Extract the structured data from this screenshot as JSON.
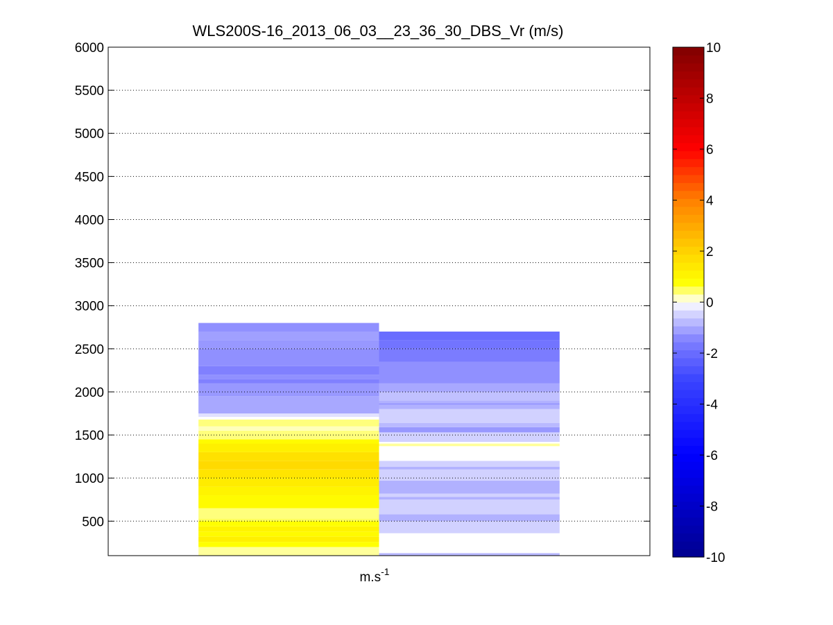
{
  "chart_data": {
    "type": "heatmap",
    "title": "WLS200S-16_2013_06_03__23_36_30_DBS_Vr (m/s)",
    "xlabel_base": "m.s",
    "xlabel_sup": "-1",
    "ylabel": "",
    "ylim": [
      100,
      6000
    ],
    "yticks": [
      500,
      1000,
      1500,
      2000,
      2500,
      3000,
      3500,
      4000,
      4500,
      5000,
      5500,
      6000
    ],
    "grid": "y-dotted",
    "colorbar": {
      "range": [
        -10,
        10
      ],
      "ticks": [
        -10,
        -8,
        -6,
        -4,
        -2,
        0,
        2,
        4,
        6,
        8,
        10
      ],
      "colormap": "blue-white-yellow-red",
      "colors": {
        "low": "#00008f",
        "mid_low": "#0000ff",
        "zero": "#ffffff",
        "mid_high": "#ffff00",
        "orange": "#ff8000",
        "red": "#ff0000",
        "high": "#800000"
      }
    },
    "columns": [
      {
        "x_range": [
          0.5,
          1.5
        ],
        "bins": [
          {
            "y0": 100,
            "y1": 200,
            "v": 0.3
          },
          {
            "y0": 200,
            "y1": 260,
            "v": 0.8
          },
          {
            "y0": 260,
            "y1": 320,
            "v": 1.2
          },
          {
            "y0": 320,
            "y1": 380,
            "v": 0.9
          },
          {
            "y0": 380,
            "y1": 440,
            "v": 1.1
          },
          {
            "y0": 440,
            "y1": 500,
            "v": 0.8
          },
          {
            "y0": 500,
            "y1": 530,
            "v": 0.5
          },
          {
            "y0": 530,
            "y1": 650,
            "v": 0.4
          },
          {
            "y0": 650,
            "y1": 800,
            "v": 0.9
          },
          {
            "y0": 800,
            "y1": 900,
            "v": 1.1
          },
          {
            "y0": 900,
            "y1": 1000,
            "v": 1.3
          },
          {
            "y0": 1000,
            "y1": 1100,
            "v": 1.5
          },
          {
            "y0": 1100,
            "y1": 1200,
            "v": 1.8
          },
          {
            "y0": 1200,
            "y1": 1300,
            "v": 1.6
          },
          {
            "y0": 1300,
            "y1": 1400,
            "v": 1.2
          },
          {
            "y0": 1400,
            "y1": 1450,
            "v": 0.9
          },
          {
            "y0": 1450,
            "y1": 1550,
            "v": 0.4
          },
          {
            "y0": 1550,
            "y1": 1600,
            "v": 0.2
          },
          {
            "y0": 1600,
            "y1": 1680,
            "v": 0.4
          },
          {
            "y0": 1680,
            "y1": 1710,
            "v": 0.0
          },
          {
            "y0": 1710,
            "y1": 1750,
            "v": -0.3
          },
          {
            "y0": 1750,
            "y1": 1950,
            "v": -1.0
          },
          {
            "y0": 1950,
            "y1": 2100,
            "v": -1.2
          },
          {
            "y0": 2100,
            "y1": 2150,
            "v": -1.5
          },
          {
            "y0": 2150,
            "y1": 2200,
            "v": -1.3
          },
          {
            "y0": 2200,
            "y1": 2300,
            "v": -1.5
          },
          {
            "y0": 2300,
            "y1": 2500,
            "v": -1.3
          },
          {
            "y0": 2500,
            "y1": 2600,
            "v": -1.2
          },
          {
            "y0": 2600,
            "y1": 2700,
            "v": -1.1
          },
          {
            "y0": 2700,
            "y1": 2800,
            "v": -1.3
          }
        ]
      },
      {
        "x_range": [
          1.5,
          2.5
        ],
        "bins": [
          {
            "y0": 100,
            "y1": 130,
            "v": -0.8
          },
          {
            "y0": 130,
            "y1": 360,
            "v": 0.0
          },
          {
            "y0": 360,
            "y1": 500,
            "v": -0.5
          },
          {
            "y0": 500,
            "y1": 580,
            "v": -0.9
          },
          {
            "y0": 580,
            "y1": 750,
            "v": -0.5
          },
          {
            "y0": 750,
            "y1": 780,
            "v": -0.9
          },
          {
            "y0": 780,
            "y1": 820,
            "v": -0.5
          },
          {
            "y0": 820,
            "y1": 970,
            "v": -0.9
          },
          {
            "y0": 970,
            "y1": 1100,
            "v": -0.5
          },
          {
            "y0": 1100,
            "y1": 1130,
            "v": -0.9
          },
          {
            "y0": 1130,
            "y1": 1200,
            "v": -0.5
          },
          {
            "y0": 1200,
            "y1": 1370,
            "v": 0.0
          },
          {
            "y0": 1370,
            "y1": 1400,
            "v": 0.3
          },
          {
            "y0": 1400,
            "y1": 1420,
            "v": 0.0
          },
          {
            "y0": 1420,
            "y1": 1530,
            "v": -0.5
          },
          {
            "y0": 1530,
            "y1": 1590,
            "v": -1.2
          },
          {
            "y0": 1590,
            "y1": 1640,
            "v": -0.8
          },
          {
            "y0": 1640,
            "y1": 1800,
            "v": -0.5
          },
          {
            "y0": 1800,
            "y1": 1850,
            "v": -0.9
          },
          {
            "y0": 1850,
            "y1": 1870,
            "v": -1.2
          },
          {
            "y0": 1870,
            "y1": 1900,
            "v": -0.9
          },
          {
            "y0": 1900,
            "y1": 2000,
            "v": -0.7
          },
          {
            "y0": 2000,
            "y1": 2100,
            "v": -1.0
          },
          {
            "y0": 2100,
            "y1": 2350,
            "v": -1.3
          },
          {
            "y0": 2350,
            "y1": 2500,
            "v": -1.6
          },
          {
            "y0": 2500,
            "y1": 2600,
            "v": -1.8
          },
          {
            "y0": 2600,
            "y1": 2700,
            "v": -2.0
          }
        ]
      }
    ]
  }
}
